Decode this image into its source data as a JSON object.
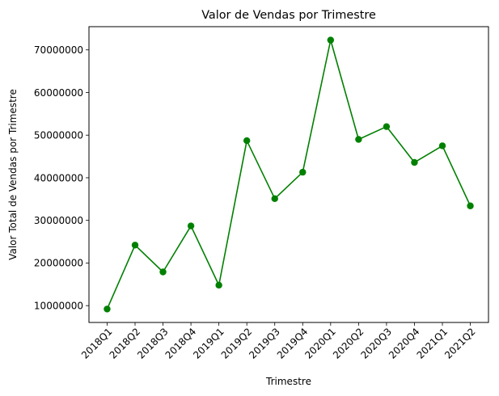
{
  "chart_data": {
    "type": "line",
    "title": "Valor de Vendas por Trimestre",
    "xlabel": "Trimestre",
    "ylabel": "Valor Total de Vendas por Trimestre",
    "categories": [
      "2018Q1",
      "2018Q2",
      "2018Q3",
      "2018Q4",
      "2019Q1",
      "2019Q2",
      "2019Q3",
      "2019Q4",
      "2020Q1",
      "2020Q2",
      "2020Q3",
      "2020Q4",
      "2021Q1",
      "2021Q2"
    ],
    "series": [
      {
        "values": [
          9200000,
          24200000,
          17900000,
          28700000,
          14800000,
          48700000,
          35100000,
          41300000,
          72300000,
          49000000,
          52000000,
          43600000,
          47500000,
          33400000
        ],
        "color": "#008000",
        "marker": "circle"
      }
    ],
    "yticks": [
      10000000,
      20000000,
      30000000,
      40000000,
      50000000,
      60000000,
      70000000
    ],
    "ytick_labels": [
      "10000000",
      "20000000",
      "30000000",
      "40000000",
      "50000000",
      "60000000",
      "70000000"
    ],
    "ylim": [
      6050000,
      75450000
    ],
    "grid": false,
    "legend": false
  }
}
